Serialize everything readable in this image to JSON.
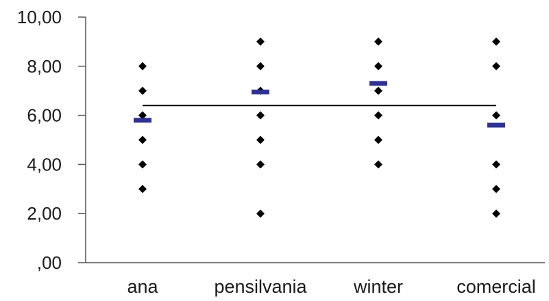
{
  "chart_data": {
    "type": "scatter",
    "title": "",
    "xlabel": "",
    "ylabel": "",
    "categories": [
      "ana",
      "pensilvania",
      "winter",
      "comercial"
    ],
    "ylim": [
      0,
      10
    ],
    "yticks": [
      0,
      2,
      4,
      6,
      8,
      10
    ],
    "ytick_labels": [
      ",00",
      "2,00",
      "4,00",
      "6,00",
      "8,00",
      "10,00"
    ],
    "grid": false,
    "legend": "none",
    "points": [
      [
        8,
        7,
        6,
        5,
        4,
        3
      ],
      [
        9,
        8,
        7,
        6,
        5,
        4,
        2
      ],
      [
        9,
        8,
        7,
        6,
        5,
        4
      ],
      [
        9,
        8,
        6,
        4,
        3,
        2
      ]
    ],
    "means": [
      5.8,
      6.95,
      7.3,
      5.6
    ],
    "grand_mean": 6.4,
    "colors": {
      "points": "#000000",
      "means": "#2e3192",
      "grand_mean_line": "#000000",
      "axis": "#555555"
    }
  }
}
